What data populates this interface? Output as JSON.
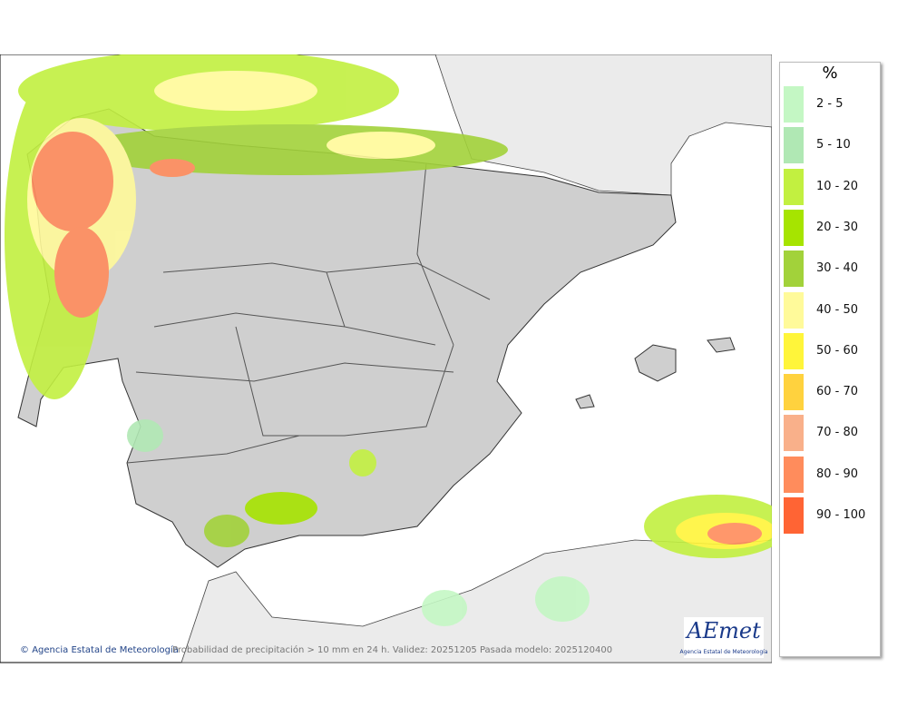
{
  "legend": {
    "title": "%",
    "items": [
      {
        "label": "2 - 5",
        "color": "#c4f7c4"
      },
      {
        "label": "5 - 10",
        "color": "#b0e8b4"
      },
      {
        "label": "10 - 20",
        "color": "#c2f040"
      },
      {
        "label": "20 - 30",
        "color": "#a6e400"
      },
      {
        "label": "30 - 40",
        "color": "#a2d23a"
      },
      {
        "label": "40 - 50",
        "color": "#fffa9a"
      },
      {
        "label": "50 - 60",
        "color": "#fff53a"
      },
      {
        "label": "60 - 70",
        "color": "#ffd23e"
      },
      {
        "label": "70 - 80",
        "color": "#f9b08a"
      },
      {
        "label": "80 - 90",
        "color": "#ff8c5c"
      },
      {
        "label": "90 - 100",
        "color": "#ff6434"
      }
    ]
  },
  "footer": {
    "credit": "Agencia Estatal de Meteorología",
    "caption": "Probabilidad de precipitación > 10 mm en 24 h. Validez: 20251205 Pasada modelo: 2025120400"
  },
  "logo": {
    "name": "AEmet",
    "subtitle": "Agencia Estatal de Meteorología"
  }
}
